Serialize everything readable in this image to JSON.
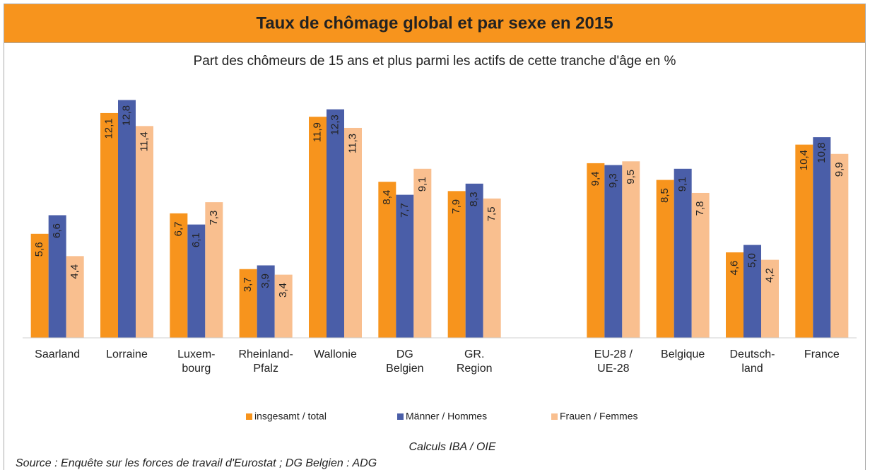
{
  "chart_data": {
    "type": "bar",
    "title": "Taux de chômage global et par sexe en 2015",
    "subtitle": "Part des chômeurs de 15 ans et plus parmi les actifs de cette tranche d'âge en %",
    "categories": [
      "Saarland",
      "Lorraine",
      "Luxem-\nbourg",
      "Rheinland-\nPfalz",
      "Wallonie",
      "DG\nBelgien",
      "GR.\nRegion",
      null,
      "EU-28 /\nUE-28",
      "Belgique",
      "Deutsch-\nland",
      "France"
    ],
    "series": [
      {
        "name": "insgesamt / total",
        "color": "#f7941d",
        "values": [
          5.6,
          12.1,
          6.7,
          3.7,
          11.9,
          8.4,
          7.9,
          null,
          9.4,
          8.5,
          4.6,
          10.4
        ],
        "value_labels": [
          "5,6",
          "12,1",
          "6,7",
          "3,7",
          "11,9",
          "8,4",
          "7,9",
          null,
          "9,4",
          "8,5",
          "4,6",
          "10,4"
        ]
      },
      {
        "name": "Männer / Hommes",
        "color": "#4a5ea8",
        "values": [
          6.6,
          12.8,
          6.1,
          3.9,
          12.3,
          7.7,
          8.3,
          null,
          9.3,
          9.1,
          5.0,
          10.8
        ],
        "value_labels": [
          "6,6",
          "12,8",
          "6,1",
          "3,9",
          "12,3",
          "7,7",
          "8,3",
          null,
          "9,3",
          "9,1",
          "5,0",
          "10,8"
        ]
      },
      {
        "name": "Frauen / Femmes",
        "color": "#f9bf8f",
        "values": [
          4.4,
          11.4,
          7.3,
          3.4,
          11.3,
          9.1,
          7.5,
          null,
          9.5,
          7.8,
          4.2,
          9.9
        ],
        "value_labels": [
          "4,4",
          "11,4",
          "7,3",
          "3,4",
          "11,3",
          "9,1",
          "7,5",
          null,
          "9,5",
          "7,8",
          "4,2",
          "9,9"
        ]
      }
    ],
    "ylim": [
      0,
      14
    ],
    "notes": [
      "Calculs IBA / OIE",
      "Source : Enquête sur les forces de travail d'Eurostat ; DG Belgien : ADG"
    ]
  }
}
